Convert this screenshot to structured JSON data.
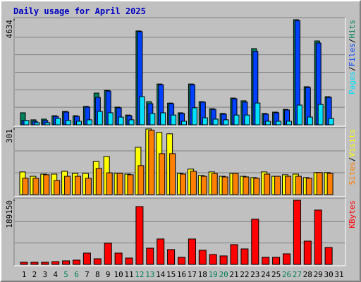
{
  "chart_data": [
    {
      "type": "bar",
      "title": "Daily usage for April 2025",
      "legend_separator": "/",
      "ylim": [
        0,
        4634
      ],
      "yticks": [
        4634
      ],
      "series": [
        {
          "name": "Hits",
          "color": "#00805c",
          "values": [
            530,
            220,
            250,
            400,
            590,
            400,
            810,
            1400,
            1520,
            780,
            430,
            4140,
            1020,
            1800,
            960,
            530,
            1800,
            1020,
            710,
            500,
            1180,
            1060,
            3360,
            500,
            560,
            680,
            4634,
            1680,
            3700,
            1240,
            0
          ]
        },
        {
          "name": "Files",
          "color": "#0040ff",
          "values": [
            190,
            155,
            190,
            370,
            560,
            370,
            780,
            1210,
            1490,
            750,
            400,
            4110,
            930,
            1770,
            930,
            500,
            1770,
            1000,
            680,
            470,
            1150,
            1000,
            3240,
            470,
            530,
            650,
            4600,
            1650,
            3610,
            1210,
            0
          ]
        },
        {
          "name": "Pages",
          "color": "#00e0ff",
          "values": [
            190,
            95,
            95,
            280,
            190,
            155,
            220,
            590,
            530,
            340,
            220,
            1240,
            500,
            530,
            430,
            155,
            750,
            310,
            250,
            220,
            430,
            430,
            960,
            155,
            155,
            155,
            870,
            340,
            900,
            280,
            0
          ]
        }
      ]
    },
    {
      "type": "bar",
      "legend_separator": "/",
      "ylim": [
        0,
        301
      ],
      "yticks": [
        301
      ],
      "series": [
        {
          "name": "Visits",
          "color": "#ffff00",
          "values": [
            104,
            84,
            94,
            94,
            107,
            97,
            97,
            152,
            175,
            97,
            94,
            217,
            301,
            285,
            279,
            97,
            117,
            88,
            104,
            84,
            97,
            84,
            78,
            104,
            84,
            91,
            94,
            78,
            101,
            101,
            0
          ]
        },
        {
          "name": "Sites",
          "color": "#ff8000",
          "values": [
            75,
            75,
            91,
            65,
            84,
            84,
            75,
            120,
            100,
            97,
            91,
            133,
            295,
            188,
            188,
            94,
            107,
            84,
            97,
            81,
            97,
            81,
            75,
            94,
            84,
            84,
            84,
            75,
            101,
            97,
            0
          ]
        }
      ]
    },
    {
      "type": "bar",
      "ylim": [
        0,
        189150
      ],
      "yticks": [
        189150
      ],
      "categories": [
        "1",
        "2",
        "3",
        "4",
        "5",
        "6",
        "7",
        "8",
        "9",
        "10",
        "11",
        "12",
        "13",
        "14",
        "15",
        "16",
        "17",
        "18",
        "19",
        "20",
        "21",
        "22",
        "23",
        "24",
        "25",
        "26",
        "27",
        "28",
        "29",
        "30",
        "31"
      ],
      "category_colors": [
        "#000000",
        "#000000",
        "#000000",
        "#000000",
        "#00805c",
        "#00805c",
        "#000000",
        "#000000",
        "#000000",
        "#000000",
        "#000000",
        "#00805c",
        "#00805c",
        "#000000",
        "#000000",
        "#000000",
        "#000000",
        "#000000",
        "#00805c",
        "#00805c",
        "#000000",
        "#000000",
        "#000000",
        "#000000",
        "#000000",
        "#00805c",
        "#00805c",
        "#000000",
        "#000000",
        "#000000",
        "#000000"
      ],
      "series": [
        {
          "name": "KBytes",
          "color": "#ff0000",
          "values": [
            6200,
            6200,
            6200,
            8300,
            10400,
            12500,
            33300,
            16600,
            62400,
            33300,
            18700,
            170500,
            47800,
            74900,
            43700,
            20800,
            74900,
            41600,
            29100,
            25000,
            58200,
            45700,
            133100,
            20800,
            20800,
            31200,
            189150,
            68600,
            160100,
            49900,
            0
          ]
        }
      ]
    }
  ]
}
